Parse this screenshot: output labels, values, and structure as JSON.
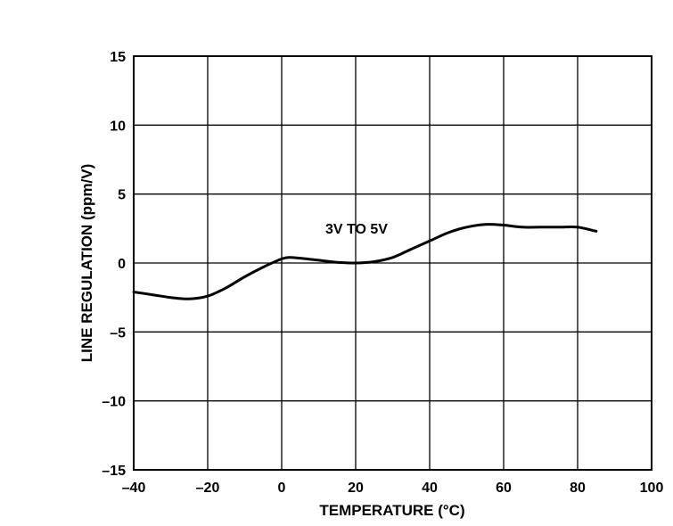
{
  "chart_data": {
    "type": "line",
    "xlabel": "TEMPERATURE (°C)",
    "ylabel": "LINE REGULATION (ppm/V)",
    "xlim": [
      -40,
      100
    ],
    "ylim": [
      -15,
      15
    ],
    "xticks": [
      -40,
      -20,
      0,
      20,
      40,
      60,
      80,
      100
    ],
    "yticks": [
      -15,
      -10,
      -5,
      0,
      5,
      10,
      15
    ],
    "xtick_labels": [
      "–40",
      "–20",
      "0",
      "20",
      "40",
      "60",
      "80",
      "100"
    ],
    "ytick_labels": [
      "–15",
      "–10",
      "–5",
      "0",
      "5",
      "10",
      "15"
    ],
    "grid": true,
    "annotation": "3V TO 5V",
    "series": [
      {
        "x": [
          -40,
          -35,
          -30,
          -25,
          -20,
          -15,
          -10,
          -5,
          0,
          2,
          5,
          10,
          15,
          20,
          25,
          30,
          35,
          40,
          45,
          50,
          55,
          60,
          65,
          70,
          75,
          80,
          85
        ],
        "y": [
          -2.1,
          -2.3,
          -2.5,
          -2.6,
          -2.4,
          -1.8,
          -1.0,
          -0.3,
          0.3,
          0.4,
          0.35,
          0.2,
          0.05,
          0.0,
          0.1,
          0.4,
          1.0,
          1.6,
          2.2,
          2.6,
          2.8,
          2.75,
          2.6,
          2.6,
          2.6,
          2.6,
          2.3
        ]
      }
    ]
  }
}
